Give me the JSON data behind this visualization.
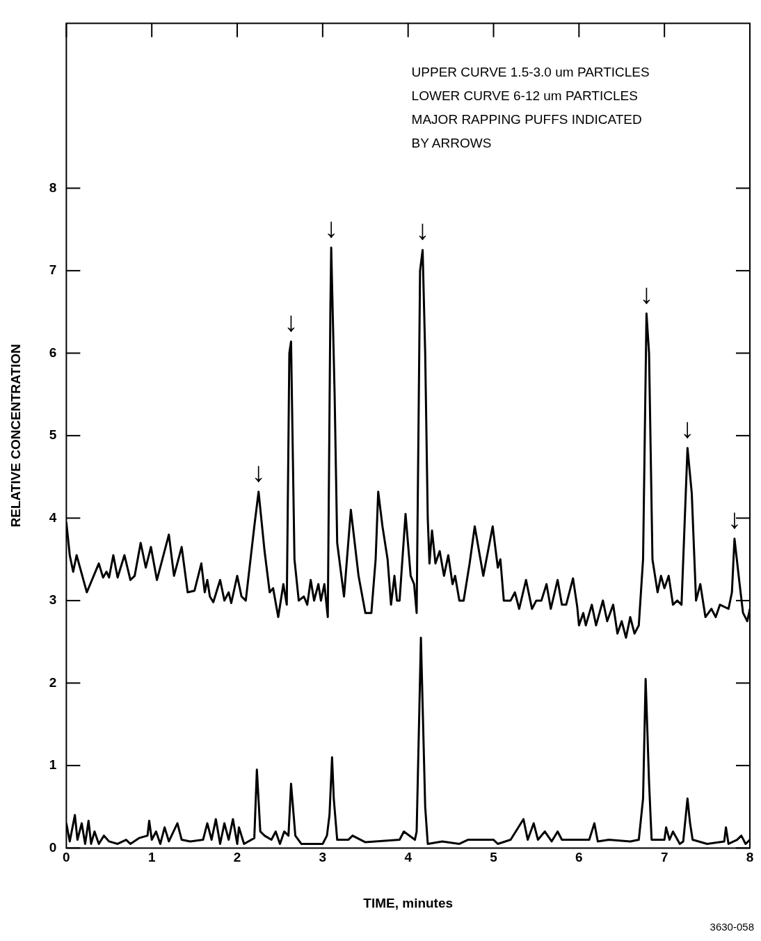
{
  "chart_data": {
    "type": "line",
    "xlabel": "TIME, minutes",
    "ylabel": "RELATIVE CONCENTRATION",
    "xlim": [
      0,
      8
    ],
    "xticks": [
      0,
      1,
      2,
      3,
      4,
      5,
      6,
      7,
      8
    ],
    "ylim": [
      0,
      10
    ],
    "yticks": [
      0,
      1,
      2,
      3,
      4,
      5,
      6,
      7,
      8
    ],
    "grid": false,
    "legend": false,
    "marker": "none",
    "line_style": "solid",
    "annotations": [
      "UPPER CURVE 1.5-3.0 um PARTICLES",
      "LOWER CURVE 6-12 um PARTICLES",
      "MAJOR RAPPING PUFFS INDICATED",
      "BY ARROWS",
      {
        "text": "↓",
        "x": 2.25,
        "y": 4.32
      },
      {
        "text": "↓",
        "x": 2.63,
        "y": 6.14
      },
      {
        "text": "↓",
        "x": 3.1,
        "y": 7.28
      },
      {
        "text": "↓",
        "x": 4.17,
        "y": 7.25
      },
      {
        "text": "↓",
        "x": 6.79,
        "y": 6.48
      },
      {
        "text": "↓",
        "x": 7.27,
        "y": 4.85
      },
      {
        "text": "↓",
        "x": 7.82,
        "y": 3.75
      },
      "3630-058"
    ],
    "series": [
      {
        "color": "#000000",
        "x": [
          0,
          0.04,
          0.08,
          0.12,
          0.16,
          0.24,
          0.32,
          0.38,
          0.43,
          0.47,
          0.5,
          0.55,
          0.6,
          0.68,
          0.75,
          0.8,
          0.87,
          0.93,
          0.99,
          1.06,
          1.2,
          1.26,
          1.35,
          1.42,
          1.5,
          1.58,
          1.62,
          1.65,
          1.68,
          1.72,
          1.8,
          1.85,
          1.9,
          1.93,
          2.0,
          2.05,
          2.1,
          2.2,
          2.25,
          2.32,
          2.38,
          2.42,
          2.48,
          2.54,
          2.58,
          2.61,
          2.63,
          2.67,
          2.72,
          2.78,
          2.82,
          2.86,
          2.9,
          2.95,
          2.98,
          3.02,
          3.06,
          3.09,
          3.1,
          3.14,
          3.17,
          3.25,
          3.33,
          3.42,
          3.5,
          3.57,
          3.62,
          3.65,
          3.7,
          3.76,
          3.8,
          3.84,
          3.87,
          3.9,
          3.97,
          4.03,
          4.07,
          4.1,
          4.14,
          4.17,
          4.2,
          4.23,
          4.25,
          4.28,
          4.32,
          4.37,
          4.42,
          4.47,
          4.52,
          4.55,
          4.6,
          4.65,
          4.72,
          4.78,
          4.88,
          4.99,
          5.05,
          5.08,
          5.12,
          5.2,
          5.25,
          5.3,
          5.38,
          5.45,
          5.5,
          5.56,
          5.62,
          5.67,
          5.75,
          5.8,
          5.85,
          5.93,
          5.98,
          6.0,
          6.05,
          6.08,
          6.15,
          6.2,
          6.28,
          6.33,
          6.4,
          6.45,
          6.5,
          6.55,
          6.6,
          6.65,
          6.7,
          6.75,
          6.79,
          6.82,
          6.86,
          6.92,
          6.96,
          7.0,
          7.05,
          7.1,
          7.15,
          7.2,
          7.27,
          7.32,
          7.37,
          7.42,
          7.48,
          7.55,
          7.6,
          7.65,
          7.75,
          7.79,
          7.82,
          7.88,
          7.92,
          7.97,
          8.0
        ],
        "values": [
          3.95,
          3.55,
          3.35,
          3.55,
          3.4,
          3.1,
          3.3,
          3.45,
          3.28,
          3.35,
          3.28,
          3.55,
          3.28,
          3.55,
          3.25,
          3.3,
          3.7,
          3.4,
          3.65,
          3.25,
          3.8,
          3.3,
          3.65,
          3.1,
          3.12,
          3.45,
          3.1,
          3.25,
          3.05,
          2.98,
          3.25,
          3.0,
          3.1,
          2.97,
          3.3,
          3.05,
          3.0,
          3.9,
          4.32,
          3.6,
          3.1,
          3.15,
          2.8,
          3.2,
          2.95,
          6.0,
          6.14,
          3.5,
          3.0,
          3.05,
          2.95,
          3.25,
          3.0,
          3.2,
          3.0,
          3.2,
          2.8,
          6.5,
          7.28,
          5.5,
          3.7,
          3.05,
          4.1,
          3.3,
          2.85,
          2.85,
          3.5,
          4.32,
          3.9,
          3.5,
          2.95,
          3.3,
          3.0,
          3.0,
          4.05,
          3.3,
          3.2,
          2.85,
          7.0,
          7.25,
          6.0,
          4.0,
          3.45,
          3.85,
          3.45,
          3.6,
          3.3,
          3.55,
          3.2,
          3.3,
          3.0,
          3.0,
          3.45,
          3.9,
          3.3,
          3.9,
          3.4,
          3.5,
          3.0,
          3.0,
          3.1,
          2.9,
          3.25,
          2.9,
          3.0,
          3.0,
          3.2,
          2.9,
          3.25,
          2.95,
          2.95,
          3.27,
          2.92,
          2.7,
          2.85,
          2.7,
          2.95,
          2.7,
          3.0,
          2.75,
          2.95,
          2.6,
          2.75,
          2.55,
          2.8,
          2.6,
          2.7,
          3.5,
          6.48,
          6.0,
          3.5,
          3.1,
          3.3,
          3.15,
          3.3,
          2.95,
          3.0,
          2.95,
          4.85,
          4.3,
          3.0,
          3.2,
          2.8,
          2.9,
          2.8,
          2.95,
          2.9,
          3.1,
          3.75,
          3.2,
          2.85,
          2.75,
          2.9
        ]
      },
      {
        "color": "#000000",
        "x": [
          0,
          0.04,
          0.1,
          0.13,
          0.18,
          0.22,
          0.26,
          0.29,
          0.33,
          0.38,
          0.44,
          0.5,
          0.6,
          0.7,
          0.75,
          0.85,
          0.95,
          0.97,
          1.0,
          1.05,
          1.1,
          1.15,
          1.2,
          1.3,
          1.35,
          1.45,
          1.6,
          1.65,
          1.7,
          1.75,
          1.8,
          1.85,
          1.9,
          1.95,
          2.0,
          2.02,
          2.08,
          2.2,
          2.23,
          2.27,
          2.32,
          2.4,
          2.45,
          2.5,
          2.55,
          2.6,
          2.63,
          2.68,
          2.75,
          3.0,
          3.05,
          3.08,
          3.11,
          3.13,
          3.17,
          3.3,
          3.35,
          3.5,
          3.9,
          3.95,
          4.08,
          4.1,
          4.15,
          4.2,
          4.23,
          4.4,
          4.6,
          4.7,
          5.0,
          5.05,
          5.2,
          5.35,
          5.4,
          5.47,
          5.52,
          5.6,
          5.68,
          5.75,
          5.8,
          6.0,
          6.12,
          6.18,
          6.22,
          6.35,
          6.6,
          6.7,
          6.75,
          6.78,
          6.82,
          6.85,
          7.0,
          7.02,
          7.06,
          7.1,
          7.18,
          7.22,
          7.27,
          7.3,
          7.33,
          7.5,
          7.7,
          7.72,
          7.75,
          7.85,
          7.9,
          7.95,
          8.0
        ],
        "values": [
          0.3,
          0.08,
          0.4,
          0.1,
          0.3,
          0.05,
          0.33,
          0.05,
          0.2,
          0.05,
          0.15,
          0.08,
          0.05,
          0.1,
          0.05,
          0.12,
          0.15,
          0.33,
          0.1,
          0.2,
          0.05,
          0.25,
          0.08,
          0.3,
          0.1,
          0.08,
          0.1,
          0.3,
          0.1,
          0.35,
          0.05,
          0.3,
          0.1,
          0.35,
          0.05,
          0.25,
          0.05,
          0.12,
          0.95,
          0.2,
          0.15,
          0.1,
          0.2,
          0.05,
          0.2,
          0.15,
          0.78,
          0.15,
          0.05,
          0.05,
          0.15,
          0.4,
          1.1,
          0.6,
          0.1,
          0.1,
          0.15,
          0.07,
          0.1,
          0.2,
          0.1,
          0.2,
          2.55,
          0.5,
          0.05,
          0.08,
          0.05,
          0.1,
          0.1,
          0.05,
          0.1,
          0.35,
          0.1,
          0.3,
          0.1,
          0.2,
          0.08,
          0.2,
          0.1,
          0.1,
          0.1,
          0.3,
          0.08,
          0.1,
          0.08,
          0.1,
          0.6,
          2.05,
          0.8,
          0.1,
          0.1,
          0.25,
          0.1,
          0.2,
          0.05,
          0.08,
          0.6,
          0.3,
          0.1,
          0.05,
          0.08,
          0.25,
          0.05,
          0.1,
          0.15,
          0.05,
          0.1
        ]
      }
    ]
  }
}
